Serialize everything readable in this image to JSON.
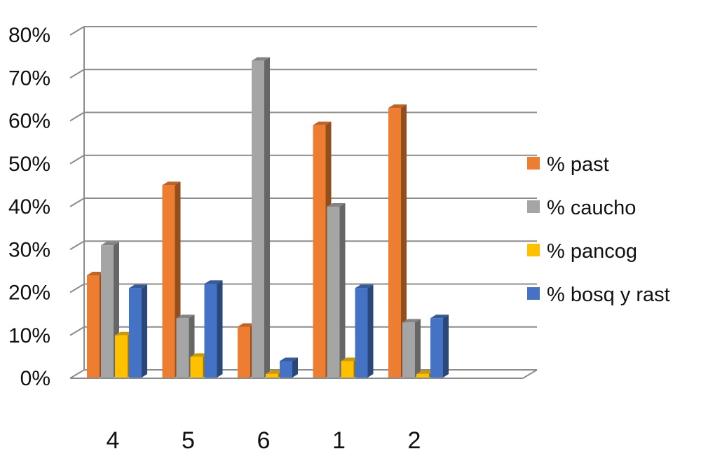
{
  "chart_data": {
    "type": "bar",
    "style": "3d-clustered-column",
    "categories": [
      "4",
      "5",
      "6",
      "1",
      "2"
    ],
    "series": [
      {
        "name": "% past",
        "color": "#ED7D31",
        "values": [
          0.24,
          0.45,
          0.12,
          0.59,
          0.63
        ]
      },
      {
        "name": "% caucho",
        "color": "#A5A5A5",
        "values": [
          0.31,
          0.14,
          0.74,
          0.4,
          0.13
        ]
      },
      {
        "name": "% pancog",
        "color": "#FFC000",
        "values": [
          0.1,
          0.05,
          0.01,
          0.04,
          0.01
        ]
      },
      {
        "name": "% bosq y rast",
        "color": "#4472C4",
        "values": [
          0.21,
          0.22,
          0.04,
          0.21,
          0.14
        ]
      }
    ],
    "ylim": [
      0,
      0.8
    ],
    "yticks": [
      "0%",
      "10%",
      "20%",
      "30%",
      "40%",
      "50%",
      "60%",
      "70%",
      "80%"
    ],
    "grid": true,
    "legend": "right"
  }
}
